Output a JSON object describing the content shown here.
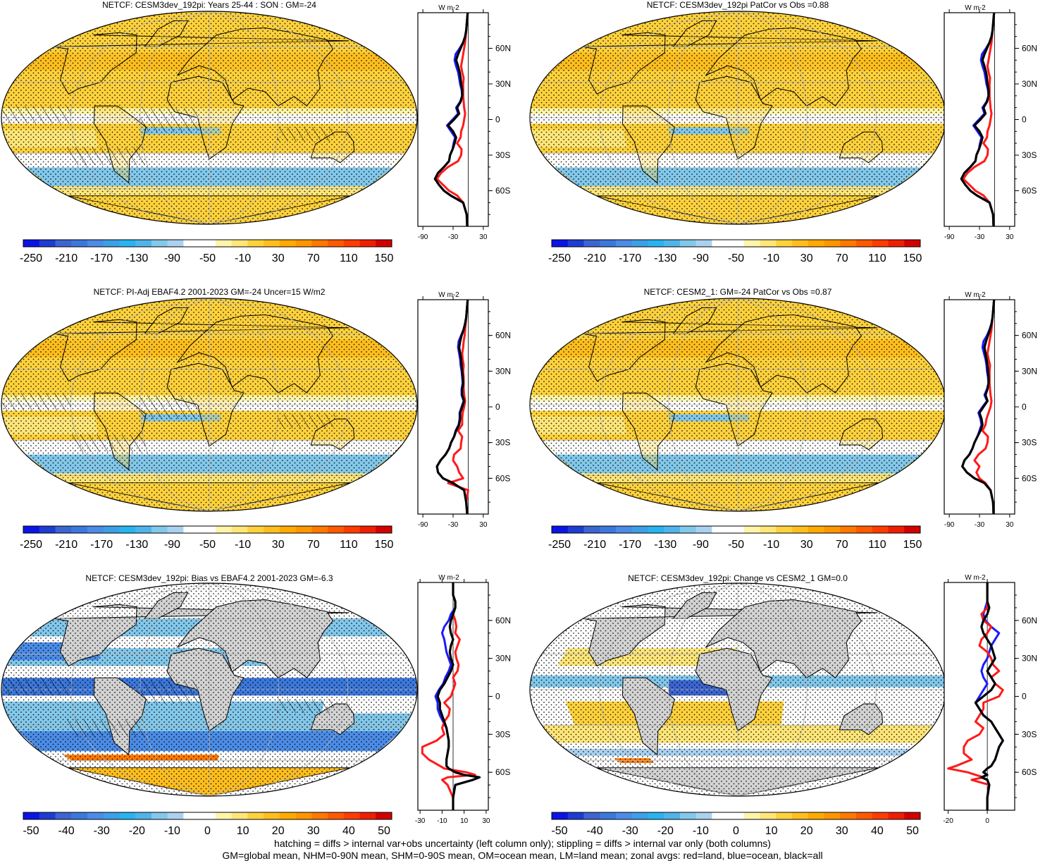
{
  "footnotes": [
    "hatching = diffs > internal var+obs uncertainty (left column only); stippling = diffs > internal var only (both columns)",
    "GM=global mean, NHM=0-90N mean, SHM=0-90S mean, OM=ocean mean, LM=land mean; zonal avgs: red=land, blue=ocean, black=all"
  ],
  "colorbars": {
    "full": {
      "labels": [
        "-250",
        "-210",
        "-170",
        "-130",
        "-90",
        "-50",
        "-10",
        "30",
        "70",
        "110",
        "150"
      ],
      "colors": [
        "#0a14e6",
        "#1e3cd2",
        "#3c64d2",
        "#3c78dc",
        "#4b8ce6",
        "#3ca0e6",
        "#28b4f0",
        "#50b4eb",
        "#82c8eb",
        "#aad2f0",
        "#ffffff",
        "#ffffff",
        "#fff5aa",
        "#ffe678",
        "#ffd23c",
        "#ffbe1e",
        "#ffaa00",
        "#ff9600",
        "#ff7800",
        "#ff5a00",
        "#ff3c00",
        "#f01e00",
        "#d20000"
      ]
    },
    "diff": {
      "labels": [
        "-50",
        "-40",
        "-30",
        "-20",
        "-10",
        "0",
        "10",
        "20",
        "30",
        "40",
        "50"
      ],
      "colors": [
        "#0a14e6",
        "#1e3cd2",
        "#3c64d2",
        "#3c78dc",
        "#4b8ce6",
        "#3ca0e6",
        "#28b4f0",
        "#50b4eb",
        "#82c8eb",
        "#aad2f0",
        "#ffffff",
        "#ffffff",
        "#fff5aa",
        "#ffe678",
        "#ffd23c",
        "#ffbe1e",
        "#ffaa00",
        "#ff9600",
        "#ff7800",
        "#ff5a00",
        "#ff3c00",
        "#f01e00",
        "#d20000"
      ]
    }
  },
  "chart_data": [
    {
      "type": "heatmap",
      "title": "NETCF: CESM3dev_192pi: Years 25-44 : SON : GM=-24",
      "colorbar": "full",
      "style": "clim",
      "hatch": true,
      "zonal": {
        "ylabel": "W m-2",
        "xticks": [
          "-90",
          "-30",
          "30"
        ],
        "xlim": [
          -100,
          40
        ],
        "yticks": [
          "60N",
          "30N",
          "0",
          "30S",
          "60S"
        ],
        "lat": [
          -90,
          -80,
          -70,
          -64,
          -60,
          -55,
          -50,
          -45,
          -40,
          -35,
          -30,
          -25,
          -20,
          -15,
          -10,
          -5,
          0,
          5,
          10,
          15,
          20,
          25,
          30,
          35,
          40,
          45,
          50,
          55,
          60,
          65,
          70,
          75,
          80,
          85,
          90
        ],
        "all": [
          -2,
          -3,
          -10,
          -35,
          -48,
          -58,
          -66,
          -60,
          -48,
          -38,
          -36,
          -31,
          -27,
          -24,
          -30,
          -40,
          -28,
          -18,
          -22,
          -15,
          -12,
          -12,
          -14,
          -15,
          -17,
          -20,
          -24,
          -20,
          -15,
          -10,
          -6,
          -4,
          -3,
          -2,
          -1
        ],
        "ocean": [
          -2,
          -3,
          -10,
          -35,
          -48,
          -58,
          -66,
          -60,
          -48,
          -38,
          -36,
          -31,
          -29,
          -26,
          -34,
          -42,
          -31,
          -20,
          -24,
          -16,
          -12,
          -13,
          -16,
          -18,
          -20,
          -24,
          -27,
          -25,
          -17,
          -10,
          -6,
          -4,
          -3,
          -2,
          -1
        ],
        "land": [
          -2,
          -3,
          -10,
          -22,
          -38,
          -50,
          -62,
          -54,
          -40,
          -20,
          -14,
          -13,
          -22,
          -15,
          -14,
          -10,
          -8,
          -6,
          -8,
          -9,
          -10,
          -10,
          -10,
          -9,
          -12,
          -14,
          -12,
          -10,
          -8,
          -6,
          -5,
          -4,
          -3,
          -2,
          -1
        ]
      }
    },
    {
      "type": "heatmap",
      "title": "NETCF: CESM3dev_192pi PatCor vs Obs =0.88",
      "colorbar": "full",
      "style": "clim",
      "hatch": false,
      "zonal": {
        "ylabel": "W m-2",
        "xticks": [
          "-90",
          "-30",
          "30"
        ],
        "xlim": [
          -100,
          40
        ],
        "yticks": [
          "60N",
          "30N",
          "0",
          "30S",
          "60S"
        ],
        "lat": [
          -90,
          -80,
          -70,
          -64,
          -60,
          -55,
          -50,
          -45,
          -40,
          -35,
          -30,
          -25,
          -20,
          -15,
          -10,
          -5,
          0,
          5,
          10,
          15,
          20,
          25,
          30,
          35,
          40,
          45,
          50,
          55,
          60,
          65,
          70,
          75,
          80,
          85,
          90
        ],
        "all": [
          -2,
          -3,
          -10,
          -35,
          -48,
          -58,
          -66,
          -60,
          -48,
          -38,
          -36,
          -31,
          -27,
          -24,
          -30,
          -40,
          -28,
          -18,
          -22,
          -15,
          -12,
          -12,
          -14,
          -15,
          -17,
          -20,
          -24,
          -20,
          -15,
          -10,
          -6,
          -4,
          -3,
          -2,
          -1
        ],
        "ocean": [
          -2,
          -3,
          -10,
          -35,
          -48,
          -58,
          -66,
          -60,
          -48,
          -38,
          -36,
          -31,
          -29,
          -26,
          -34,
          -42,
          -31,
          -20,
          -24,
          -16,
          -12,
          -13,
          -16,
          -18,
          -20,
          -24,
          -27,
          -25,
          -17,
          -10,
          -6,
          -4,
          -3,
          -2,
          -1
        ],
        "land": [
          -2,
          -3,
          -10,
          -22,
          -38,
          -50,
          -62,
          -54,
          -40,
          -20,
          -14,
          -13,
          -22,
          -15,
          -14,
          -10,
          -8,
          -6,
          -8,
          -9,
          -10,
          -10,
          -10,
          -9,
          -12,
          -14,
          -12,
          -10,
          -8,
          -6,
          -5,
          -4,
          -3,
          -2,
          -1
        ]
      }
    },
    {
      "type": "heatmap",
      "title": "NETCF: PI-Adj EBAF4.2 2001-2023 GM=-24 Uncer=15 W/m2",
      "colorbar": "full",
      "style": "clim",
      "hatch": true,
      "zonal": {
        "ylabel": "W m-2",
        "xticks": [
          "-90",
          "-30",
          "30"
        ],
        "xlim": [
          -100,
          40
        ],
        "yticks": [
          "60N",
          "30N",
          "0",
          "30S",
          "60S"
        ],
        "lat": [
          -90,
          -80,
          -70,
          -64,
          -60,
          -55,
          -50,
          -45,
          -40,
          -35,
          -30,
          -25,
          -20,
          -15,
          -10,
          -5,
          0,
          5,
          10,
          15,
          20,
          25,
          30,
          35,
          40,
          45,
          50,
          55,
          60,
          65,
          70,
          75,
          80,
          85,
          90
        ],
        "all": [
          -2,
          -4,
          -8,
          -30,
          -50,
          -60,
          -62,
          -55,
          -45,
          -38,
          -34,
          -28,
          -24,
          -18,
          -16,
          -16,
          -12,
          -8,
          -12,
          -12,
          -10,
          -11,
          -12,
          -13,
          -14,
          -16,
          -18,
          -16,
          -13,
          -9,
          -6,
          -4,
          -3,
          -2,
          -1
        ],
        "ocean": [
          -2,
          -4,
          -8,
          -30,
          -50,
          -60,
          -62,
          -55,
          -45,
          -38,
          -34,
          -28,
          -25,
          -19,
          -17,
          -17,
          -13,
          -9,
          -13,
          -13,
          -11,
          -12,
          -13,
          -15,
          -16,
          -18,
          -20,
          -19,
          -14,
          -9,
          -6,
          -4,
          -3,
          -2,
          -1
        ],
        "land": [
          -2,
          -4,
          0,
          -40,
          -10,
          -18,
          -22,
          -30,
          -28,
          -15,
          -14,
          -12,
          -20,
          -12,
          -12,
          -11,
          -8,
          -6,
          -8,
          -9,
          -9,
          -9,
          -10,
          -9,
          -11,
          -12,
          -10,
          -9,
          -7,
          -6,
          -5,
          -4,
          -3,
          -2,
          -1
        ]
      }
    },
    {
      "type": "heatmap",
      "title": "NETCF: CESM2_1: GM=-24 PatCor vs Obs =0.87",
      "colorbar": "full",
      "style": "clim",
      "hatch": false,
      "zonal": {
        "ylabel": "W m-2",
        "xticks": [
          "-90",
          "-30",
          "30"
        ],
        "xlim": [
          -100,
          40
        ],
        "yticks": [
          "60N",
          "30N",
          "0",
          "30S",
          "60S"
        ],
        "lat": [
          -90,
          -80,
          -70,
          -64,
          -60,
          -55,
          -50,
          -45,
          -40,
          -35,
          -30,
          -25,
          -20,
          -15,
          -10,
          -5,
          0,
          5,
          10,
          15,
          20,
          25,
          30,
          35,
          40,
          45,
          50,
          55,
          60,
          65,
          70,
          75,
          80,
          85,
          90
        ],
        "all": [
          -2,
          -3,
          -8,
          -20,
          -40,
          -55,
          -64,
          -60,
          -50,
          -44,
          -40,
          -34,
          -28,
          -24,
          -26,
          -30,
          -22,
          -14,
          -18,
          -14,
          -12,
          -12,
          -13,
          -14,
          -16,
          -18,
          -20,
          -17,
          -13,
          -9,
          -6,
          -4,
          -3,
          -2,
          -1
        ],
        "ocean": [
          -2,
          -3,
          -8,
          -20,
          -40,
          -55,
          -64,
          -60,
          -50,
          -44,
          -40,
          -34,
          -30,
          -26,
          -28,
          -32,
          -24,
          -15,
          -20,
          -15,
          -12,
          -13,
          -15,
          -16,
          -18,
          -21,
          -24,
          -22,
          -15,
          -10,
          -6,
          -4,
          -3,
          -2,
          -1
        ],
        "land": [
          -2,
          -3,
          -8,
          -18,
          -30,
          -36,
          -30,
          -40,
          -32,
          -18,
          -14,
          -13,
          -24,
          -18,
          -16,
          -12,
          -8,
          -6,
          -8,
          -9,
          -10,
          -10,
          -10,
          -9,
          -12,
          -14,
          -12,
          -10,
          -8,
          -6,
          -5,
          -4,
          -3,
          -2,
          -1
        ]
      }
    },
    {
      "type": "heatmap",
      "title": "NETCF: CESM3dev_192pi: Bias vs EBAF4.2 2001-2023  GM=-6.3",
      "colorbar": "diff",
      "style": "bias",
      "hatch": true,
      "zonal": {
        "ylabel": "W m-2",
        "xticks": [
          "-30",
          "-10",
          "10",
          "30"
        ],
        "xlim": [
          -32,
          32
        ],
        "yticks": [
          "60N",
          "30N",
          "0",
          "30S",
          "60S"
        ],
        "lat": [
          -90,
          -80,
          -70,
          -66,
          -64,
          -62,
          -60,
          -57,
          -55,
          -50,
          -45,
          -40,
          -35,
          -30,
          -25,
          -20,
          -15,
          -10,
          -5,
          0,
          5,
          10,
          15,
          20,
          25,
          30,
          35,
          40,
          45,
          50,
          55,
          60,
          65,
          70,
          75,
          80,
          85,
          90
        ],
        "all": [
          0,
          0,
          2,
          18,
          24,
          10,
          2,
          -4,
          -6,
          -6,
          -5,
          -4,
          -4,
          -5,
          -6,
          -8,
          -10,
          -12,
          -12,
          -14,
          -12,
          -8,
          -5,
          -2,
          0,
          -2,
          -3,
          -2,
          0,
          -2,
          -3,
          -2,
          0,
          2,
          2,
          0,
          0,
          0
        ],
        "ocean": [
          0,
          0,
          2,
          18,
          24,
          10,
          2,
          -4,
          -6,
          -6,
          -5,
          -4,
          -4,
          -5,
          -6,
          -9,
          -12,
          -14,
          -14,
          -16,
          -13,
          -9,
          -7,
          -4,
          -2,
          -4,
          -6,
          -7,
          -8,
          -10,
          -8,
          -4,
          -2,
          2,
          2,
          0,
          0,
          0
        ],
        "land": [
          0,
          0,
          -5,
          -10,
          -5,
          20,
          12,
          -8,
          -12,
          -22,
          -28,
          -28,
          -15,
          -8,
          -10,
          -8,
          -4,
          -3,
          -8,
          -2,
          0,
          2,
          0,
          4,
          5,
          3,
          2,
          4,
          6,
          2,
          3,
          2,
          0,
          2,
          2,
          0,
          0,
          0
        ]
      }
    },
    {
      "type": "heatmap",
      "title": "NETCF: CESM3dev_192pi: Change vs CESM2_1 GM=0.0",
      "colorbar": "diff",
      "style": "change",
      "hatch": false,
      "zonal": {
        "ylabel": "W m-2",
        "xticks": [
          "-20",
          "0"
        ],
        "xlim": [
          -22,
          14
        ],
        "yticks": [
          "60N",
          "30N",
          "0",
          "30S",
          "60S"
        ],
        "lat": [
          -90,
          -80,
          -70,
          -66,
          -64,
          -62,
          -60,
          -57,
          -55,
          -50,
          -45,
          -40,
          -35,
          -30,
          -25,
          -20,
          -15,
          -10,
          -5,
          0,
          5,
          10,
          15,
          20,
          25,
          30,
          35,
          40,
          45,
          50,
          55,
          60,
          65,
          70,
          75,
          80,
          85,
          90
        ],
        "all": [
          0,
          0,
          1,
          0,
          -3,
          0,
          -2,
          0,
          2,
          4,
          5,
          6,
          8,
          6,
          4,
          2,
          -2,
          -4,
          -6,
          -2,
          2,
          4,
          2,
          0,
          2,
          4,
          3,
          2,
          0,
          -2,
          -3,
          -2,
          0,
          1,
          0,
          0,
          0,
          0
        ],
        "ocean": [
          0,
          0,
          1,
          0,
          -3,
          0,
          -2,
          0,
          2,
          4,
          5,
          6,
          8,
          6,
          4,
          2,
          -2,
          -4,
          -6,
          -4,
          -2,
          0,
          -2,
          -3,
          -2,
          0,
          1,
          2,
          4,
          6,
          2,
          -1,
          -2,
          -1,
          0,
          0,
          0,
          0
        ],
        "land": [
          0,
          0,
          1,
          -8,
          -2,
          -6,
          -10,
          -20,
          -16,
          -8,
          -12,
          -12,
          -10,
          -4,
          -2,
          -6,
          -4,
          -2,
          -2,
          6,
          8,
          4,
          2,
          6,
          3,
          2,
          0,
          -4,
          -3,
          0,
          2,
          -2,
          -3,
          0,
          0,
          0,
          0,
          0
        ]
      }
    }
  ]
}
